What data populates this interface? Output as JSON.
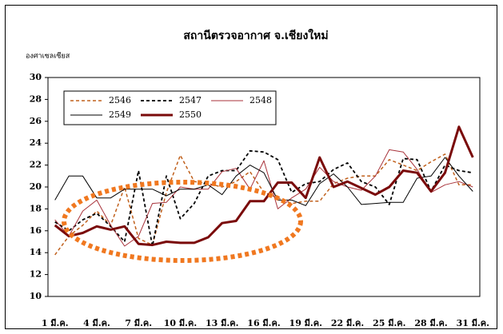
{
  "chart_data": {
    "type": "line",
    "title": "สถานีตรวจอากาศ จ.เชียงใหม่",
    "ylabel": "องศาเซลเซียส",
    "categories": [
      "1 มี.ค.",
      null,
      null,
      "4 มี.ค.",
      null,
      null,
      "7 มี.ค.",
      null,
      null,
      "10 มี.ค.",
      null,
      null,
      "13 มี.ค.",
      null,
      null,
      "16 มี.ค.",
      null,
      null,
      "19 มี.ค.",
      null,
      null,
      "22 มี.ค.",
      null,
      null,
      "25 มี.ค.",
      null,
      null,
      "28 มี.ค.",
      null,
      null,
      "31 มี.ค."
    ],
    "ylim": [
      10,
      30
    ],
    "yticks": [
      10,
      12,
      14,
      16,
      18,
      20,
      22,
      24,
      26,
      28,
      30
    ],
    "grid": false,
    "legend": "upper left",
    "series": [
      {
        "name": "2546",
        "color": "#c0601c",
        "line_style": "dashed",
        "line_width": 1.5,
        "values": [
          13.8,
          15.5,
          16.5,
          17.8,
          16.5,
          20.0,
          15.3,
          14.7,
          19.5,
          22.9,
          20.5,
          20.3,
          20.0,
          20.5,
          21.4,
          19.5,
          19.0,
          18.5,
          18.7,
          18.7,
          20.3,
          20.8,
          21.0,
          21.0,
          22.5,
          22.0,
          21.5,
          22.3,
          23.0,
          20.2,
          20.2
        ]
      },
      {
        "name": "2547",
        "color": "#000000",
        "line_style": "dashed",
        "line_width": 1.8,
        "values": [
          16.8,
          16.0,
          17.0,
          17.6,
          16.4,
          15.0,
          21.5,
          14.6,
          21.0,
          17.1,
          18.5,
          21.0,
          21.5,
          21.5,
          23.3,
          23.2,
          22.5,
          19.5,
          20.3,
          20.5,
          21.6,
          22.2,
          20.5,
          20.0,
          18.4,
          22.6,
          22.5,
          19.6,
          22.0,
          21.5,
          21.3
        ]
      },
      {
        "name": "2548",
        "color": "#a8323a",
        "line_style": "solid",
        "line_width": 1,
        "values": [
          17.0,
          15.5,
          17.8,
          18.8,
          16.5,
          14.6,
          15.5,
          18.5,
          18.6,
          20.0,
          19.8,
          19.8,
          21.4,
          21.7,
          19.8,
          22.4,
          18.0,
          19.0,
          19.8,
          21.8,
          20.5,
          20.0,
          19.7,
          21.0,
          23.4,
          23.2,
          21.6,
          19.5,
          20.2,
          20.5,
          20.0
        ]
      },
      {
        "name": "2549",
        "color": "#000000",
        "line_style": "solid",
        "line_width": 1,
        "values": [
          18.8,
          21.0,
          21.0,
          19.0,
          19.0,
          19.8,
          19.8,
          19.8,
          19.2,
          19.8,
          19.8,
          20.2,
          19.3,
          21.0,
          22.0,
          21.3,
          18.8,
          18.8,
          18.3,
          20.3,
          21.2,
          20.0,
          18.4,
          18.5,
          18.6,
          18.6,
          20.8,
          21.0,
          22.7,
          21.0,
          19.6
        ]
      },
      {
        "name": "2550",
        "color": "#7a0a0a",
        "line_style": "solid",
        "line_width": 3,
        "values": [
          16.5,
          15.5,
          15.8,
          16.4,
          16.1,
          16.4,
          14.8,
          14.7,
          15.0,
          14.9,
          14.9,
          15.4,
          16.7,
          16.9,
          18.7,
          18.7,
          20.4,
          20.4,
          19.0,
          22.7,
          20.0,
          20.5,
          19.9,
          19.3,
          20.0,
          21.5,
          21.3,
          19.6,
          21.3,
          25.5,
          22.7
        ]
      }
    ]
  }
}
